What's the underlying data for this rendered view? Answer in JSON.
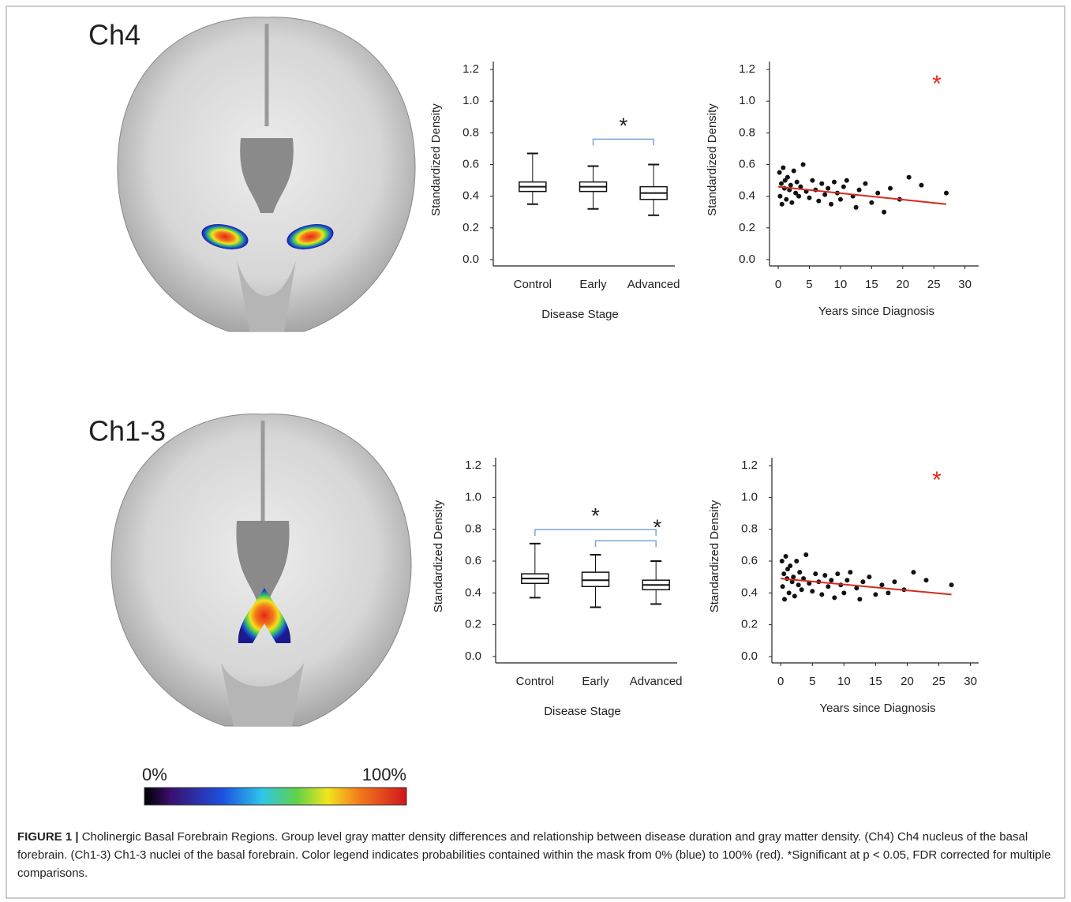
{
  "panels": [
    "Ch4",
    "Ch1-3"
  ],
  "colorbar": {
    "min_label": "0%",
    "max_label": "100%"
  },
  "caption": {
    "lead": "FIGURE 1 |",
    "text": "Cholinergic Basal Forebrain Regions. Group level gray matter density differences and relationship between disease duration and gray matter density. (Ch4) Ch4 nucleus of the basal forebrain. (Ch1-3) Ch1-3 nuclei of the basal forebrain. Color legend indicates probabilities contained within the mask from 0% (blue) to 100% (red). *Significant at p < 0.05, FDR corrected for multiple comparisons."
  },
  "chart_data": [
    {
      "type": "box",
      "x_label": "Disease Stage",
      "y_label": "Standardized Density",
      "categories": [
        "Control",
        "Early",
        "Advanced"
      ],
      "boxes": [
        {
          "min": 0.35,
          "q1": 0.43,
          "median": 0.46,
          "q3": 0.49,
          "max": 0.67
        },
        {
          "min": 0.32,
          "q1": 0.43,
          "median": 0.46,
          "q3": 0.49,
          "max": 0.59
        },
        {
          "min": 0.28,
          "q1": 0.38,
          "median": 0.42,
          "q3": 0.46,
          "max": 0.6
        }
      ],
      "brackets": [
        {
          "from": "Early",
          "to": "Advanced",
          "label": "*"
        }
      ],
      "bracket_color": "#7aa6d8",
      "ylim": [
        -0.04,
        1.25
      ],
      "yticks": [
        {
          "value": 0,
          "label": "0.0"
        },
        0.2,
        0.4,
        0.6,
        0.8,
        {
          "value": 1,
          "label": "1.0"
        },
        1.2
      ]
    },
    {
      "type": "scatter",
      "x_label": "Years since Diagnosis",
      "y_label": "Standardized Density",
      "x": [
        0.2,
        0.3,
        0.5,
        0.6,
        0.8,
        1,
        1.1,
        1.3,
        1.5,
        1.8,
        2,
        2.2,
        2.5,
        2.8,
        3,
        3.3,
        3.6,
        4,
        4.5,
        5,
        5.5,
        6,
        6.5,
        7,
        7.5,
        8,
        8.5,
        9,
        9.5,
        10,
        10.5,
        11,
        12,
        12.5,
        13,
        14,
        15,
        16,
        17,
        18,
        19.5,
        21,
        23,
        27
      ],
      "y": [
        0.55,
        0.4,
        0.48,
        0.35,
        0.58,
        0.45,
        0.5,
        0.38,
        0.52,
        0.44,
        0.47,
        0.36,
        0.56,
        0.42,
        0.49,
        0.4,
        0.46,
        0.6,
        0.43,
        0.39,
        0.5,
        0.44,
        0.37,
        0.48,
        0.41,
        0.45,
        0.35,
        0.49,
        0.42,
        0.38,
        0.46,
        0.5,
        0.4,
        0.33,
        0.44,
        0.48,
        0.36,
        0.42,
        0.3,
        0.45,
        0.38,
        0.52,
        0.47,
        0.42
      ],
      "color": "#111111",
      "trend": {
        "x": [
          0,
          27
        ],
        "y": [
          0.46,
          0.35
        ],
        "color": "#d62a1f"
      },
      "annotation": {
        "text": "*",
        "color": "#e8281e"
      },
      "xlim": [
        -1.4,
        32.2
      ],
      "xticks": [
        0,
        5,
        10,
        15,
        20,
        25,
        30
      ],
      "ylim": [
        -0.04,
        1.25
      ],
      "yticks": [
        {
          "value": 0,
          "label": "0.0"
        },
        0.2,
        0.4,
        0.6,
        0.8,
        {
          "value": 1,
          "label": "1.0"
        },
        1.2
      ]
    },
    {
      "type": "box",
      "x_label": "Disease Stage",
      "y_label": "Standardized Density",
      "categories": [
        "Control",
        "Early",
        "Advanced"
      ],
      "boxes": [
        {
          "min": 0.37,
          "q1": 0.46,
          "median": 0.49,
          "q3": 0.52,
          "max": 0.71
        },
        {
          "min": 0.31,
          "q1": 0.44,
          "median": 0.48,
          "q3": 0.53,
          "max": 0.64
        },
        {
          "min": 0.33,
          "q1": 0.42,
          "median": 0.45,
          "q3": 0.48,
          "max": 0.6
        }
      ],
      "brackets": [
        {
          "from": "Control",
          "to": "Advanced",
          "label": "*"
        },
        {
          "from": "Early",
          "to": "Advanced",
          "label": "*"
        }
      ],
      "bracket_color": "#7aa6d8",
      "ylim": [
        -0.04,
        1.25
      ],
      "yticks": [
        {
          "value": 0,
          "label": "0.0"
        },
        0.2,
        0.4,
        0.6,
        0.8,
        {
          "value": 1,
          "label": "1.0"
        },
        1.2
      ]
    },
    {
      "type": "scatter",
      "x_label": "Years since Diagnosis",
      "y_label": "Standardized Density",
      "x": [
        0.2,
        0.3,
        0.5,
        0.6,
        0.8,
        1,
        1.1,
        1.3,
        1.5,
        1.8,
        2,
        2.2,
        2.5,
        2.8,
        3,
        3.3,
        3.6,
        4,
        4.5,
        5,
        5.5,
        6,
        6.5,
        7,
        7.5,
        8,
        8.5,
        9,
        9.5,
        10,
        10.5,
        11,
        12,
        12.5,
        13,
        14,
        15,
        16,
        17,
        18,
        19.5,
        21,
        23,
        27
      ],
      "y": [
        0.6,
        0.44,
        0.52,
        0.36,
        0.63,
        0.49,
        0.55,
        0.4,
        0.57,
        0.47,
        0.5,
        0.38,
        0.6,
        0.45,
        0.53,
        0.42,
        0.49,
        0.64,
        0.46,
        0.41,
        0.52,
        0.47,
        0.39,
        0.51,
        0.44,
        0.48,
        0.37,
        0.52,
        0.45,
        0.4,
        0.48,
        0.53,
        0.43,
        0.36,
        0.47,
        0.5,
        0.39,
        0.45,
        0.4,
        0.47,
        0.42,
        0.53,
        0.48,
        0.45
      ],
      "color": "#111111",
      "trend": {
        "x": [
          0,
          27
        ],
        "y": [
          0.49,
          0.39
        ],
        "color": "#d62a1f"
      },
      "annotation": {
        "text": "*",
        "color": "#e8281e"
      },
      "xlim": [
        -1.4,
        31.3
      ],
      "xticks": [
        0,
        5,
        10,
        15,
        20,
        25,
        30
      ],
      "ylim": [
        -0.04,
        1.25
      ],
      "yticks": [
        {
          "value": 0,
          "label": "0.0"
        },
        0.2,
        0.4,
        0.6,
        0.8,
        {
          "value": 1,
          "label": "1.0"
        },
        1.2
      ]
    }
  ]
}
